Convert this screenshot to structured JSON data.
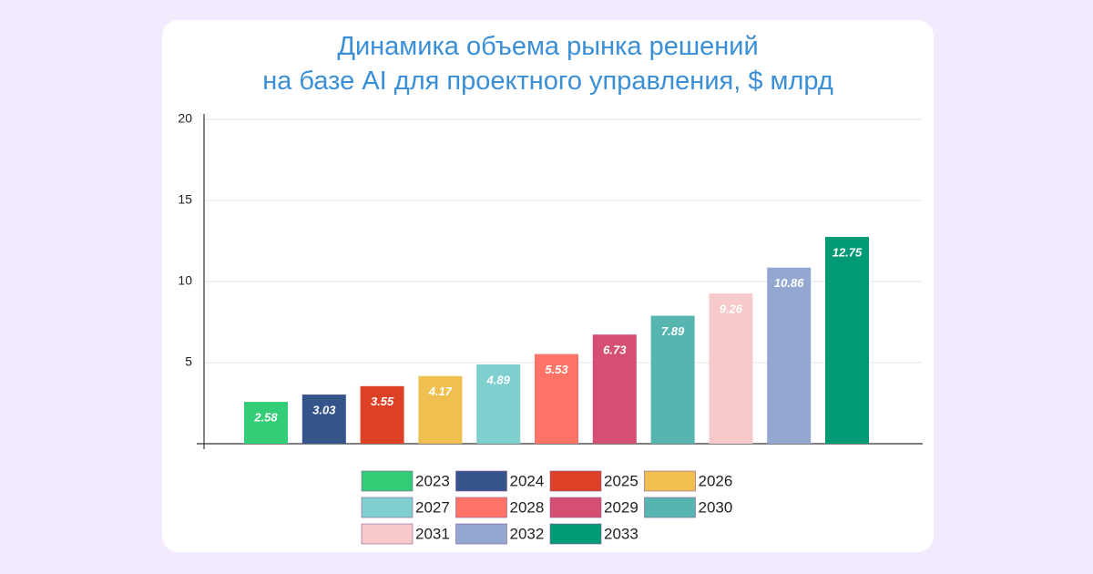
{
  "chart_data": {
    "type": "bar",
    "title": "Динамика объема рынка решений\nна базе AI для проектного управления, $ млрд",
    "categories": [
      "2023",
      "2024",
      "2025",
      "2026",
      "2027",
      "2028",
      "2029",
      "2030",
      "2031",
      "2032",
      "2033"
    ],
    "values": [
      2.58,
      3.03,
      3.55,
      4.17,
      4.89,
      5.53,
      6.73,
      7.89,
      9.26,
      10.86,
      12.75
    ],
    "colors": [
      "#33cc77",
      "#34548a",
      "#dd4125",
      "#efbf4f",
      "#7fcfcf",
      "#ff7466",
      "#d44f72",
      "#57b5b0",
      "#f7c9ca",
      "#93a7d1",
      "#009b74"
    ],
    "ylim": [
      0,
      20
    ],
    "yticks": [
      5,
      10,
      15,
      20
    ],
    "grid": true
  }
}
